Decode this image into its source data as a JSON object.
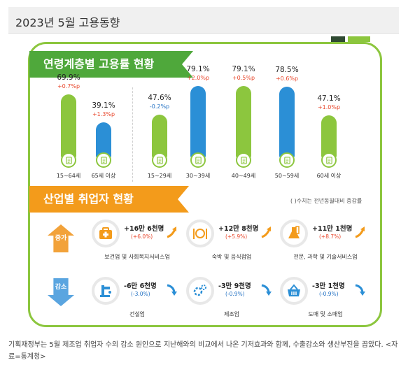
{
  "title": "2023년 5월 고용동향",
  "section1": {
    "heading": "연령계층별 고용률 현황"
  },
  "section2": {
    "heading": "산업별 취업자 현황",
    "note": "( )수치는 전년동월대비 증감률",
    "up_label": "증가",
    "down_label": "감소"
  },
  "chart_data": {
    "type": "bar",
    "categories": [
      "15~64세",
      "65세 이상",
      "15~29세",
      "30~39세",
      "40~49세",
      "50~59세",
      "60세 이상"
    ],
    "values": [
      69.9,
      39.1,
      47.6,
      79.1,
      79.1,
      78.5,
      47.1
    ],
    "value_labels": [
      "69.9%",
      "39.1%",
      "47.6%",
      "79.1%",
      "79.1%",
      "78.5%",
      "47.1%"
    ],
    "changes": [
      "+0.7%p",
      "+1.3%p",
      "-0.2%p",
      "+2.0%p",
      "+0.5%p",
      "+0.6%p",
      "+1.0%p"
    ],
    "bar_colors": [
      "#8cc63e",
      "#2b8fd6",
      "#8cc63e",
      "#2b8fd6",
      "#8cc63e",
      "#2b8fd6",
      "#8cc63e"
    ]
  },
  "industries_up": [
    {
      "name": "보건업 및 사회복지서비스업",
      "value": "+16만 6천명",
      "change": "(+6.0%)",
      "icon": "first-aid-kit-icon"
    },
    {
      "name": "숙박 및 음식점업",
      "value": "+12만 8천명",
      "change": "(+5.9%)",
      "icon": "fork-plate-knife-icon"
    },
    {
      "name": "전문, 과학 및 기술서비스업",
      "value": "+11만 1천명",
      "change": "(+8.7%)",
      "icon": "flask-icon"
    }
  ],
  "industries_down": [
    {
      "name": "건설업",
      "value": "-6만 6천명",
      "change": "(-3.0%)",
      "icon": "faucet-icon"
    },
    {
      "name": "제조업",
      "value": "-3만 9천명",
      "change": "(-0.9%)",
      "icon": "gears-icon"
    },
    {
      "name": "도매 및 소매업",
      "value": "-3만 1천명",
      "change": "(-0.9%)",
      "icon": "shopping-basket-icon"
    }
  ],
  "colors": {
    "green": "#8cc63e",
    "blue": "#2b8fd6",
    "orange": "#f39b1b",
    "up": "#e8462b",
    "down": "#1f6fc2"
  },
  "caption": "기획재정부는 5월 제조업 취업자 수의 감소 원인으로 지난해와의 비교에서 나온 기저효과와 함께, 수출감소와 생산부진을 꼽았다. <자료=통계청>"
}
